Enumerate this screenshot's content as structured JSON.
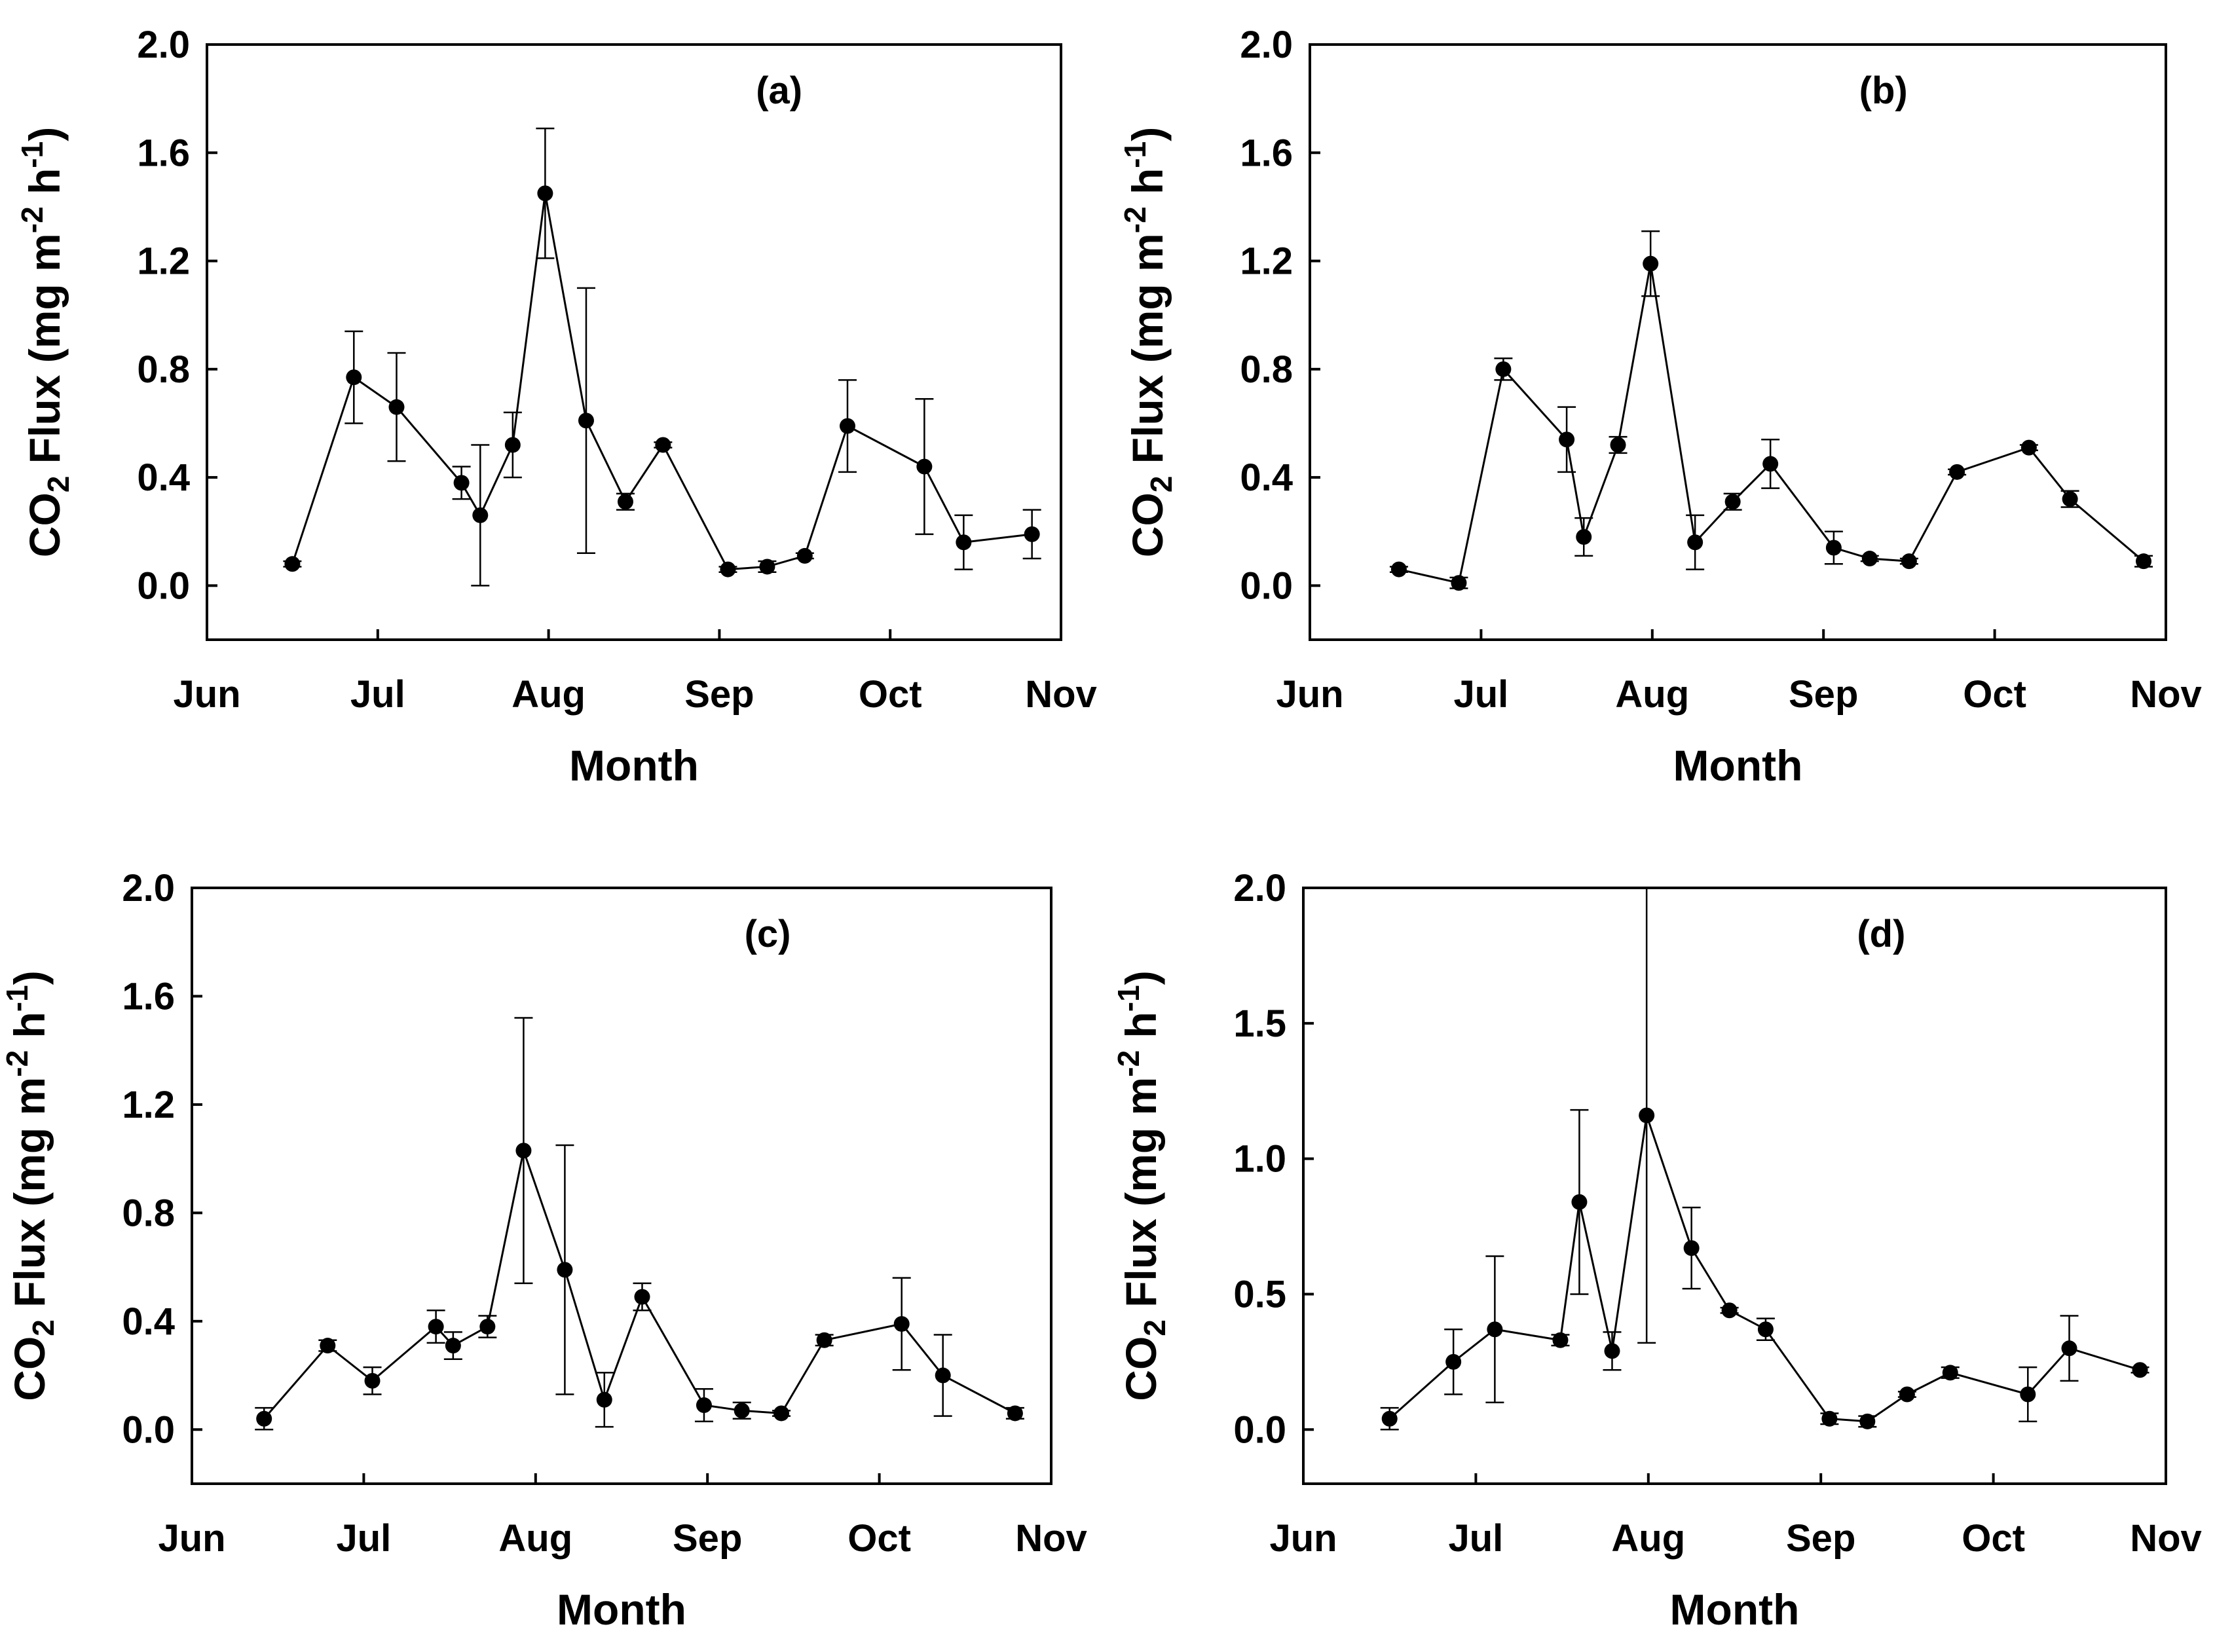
{
  "chart_data": [
    {
      "type": "line",
      "panel_label": "(a)",
      "xlabel": "Month",
      "ylabel": {
        "prefix": "CO",
        "sub": "2",
        "mid": " Flux (mg m",
        "sup1": "-2",
        "mid2": " h",
        "sup2": "-1",
        "suffix": ")"
      },
      "x_ticks": [
        "Jun",
        "Jul",
        "Aug",
        "Sep",
        "Oct",
        "Nov"
      ],
      "x_range": [
        0,
        5
      ],
      "y_ticks": [
        "0.0",
        "0.4",
        "0.8",
        "1.2",
        "1.6",
        "2.0"
      ],
      "y_tick_values": [
        0,
        0.4,
        0.8,
        1.2,
        1.6,
        2.0
      ],
      "ylim": [
        -0.2,
        2.0
      ],
      "points": [
        {
          "x": 0.5,
          "y": 0.08,
          "err": 0.01
        },
        {
          "x": 0.86,
          "y": 0.77,
          "err": 0.17
        },
        {
          "x": 1.11,
          "y": 0.66,
          "err": 0.2
        },
        {
          "x": 1.49,
          "y": 0.38,
          "err": 0.06
        },
        {
          "x": 1.6,
          "y": 0.26,
          "err": 0.26
        },
        {
          "x": 1.79,
          "y": 0.52,
          "err": 0.12
        },
        {
          "x": 1.98,
          "y": 1.45,
          "err": 0.24
        },
        {
          "x": 2.22,
          "y": 0.61,
          "err": 0.49
        },
        {
          "x": 2.45,
          "y": 0.31,
          "err": 0.03
        },
        {
          "x": 2.67,
          "y": 0.52,
          "err": 0.01
        },
        {
          "x": 3.05,
          "y": 0.06,
          "err": 0.01
        },
        {
          "x": 3.28,
          "y": 0.07,
          "err": 0.02
        },
        {
          "x": 3.5,
          "y": 0.11,
          "err": 0.01
        },
        {
          "x": 3.75,
          "y": 0.59,
          "err": 0.17
        },
        {
          "x": 4.2,
          "y": 0.44,
          "err": 0.25
        },
        {
          "x": 4.43,
          "y": 0.16,
          "err": 0.1
        },
        {
          "x": 4.83,
          "y": 0.19,
          "err": 0.09
        }
      ]
    },
    {
      "type": "line",
      "panel_label": "(b)",
      "xlabel": "Month",
      "ylabel": {
        "prefix": "CO",
        "sub": "2",
        "mid": " Flux (mg m",
        "sup1": "-2",
        "mid2": " h",
        "sup2": "-1",
        "suffix": ")"
      },
      "x_ticks": [
        "Jun",
        "Jul",
        "Aug",
        "Sep",
        "Oct",
        "Nov"
      ],
      "x_range": [
        0,
        5
      ],
      "y_ticks": [
        "0.0",
        "0.4",
        "0.8",
        "1.2",
        "1.6",
        "2.0"
      ],
      "y_tick_values": [
        0,
        0.4,
        0.8,
        1.2,
        1.6,
        2.0
      ],
      "ylim": [
        -0.2,
        2.0
      ],
      "points": [
        {
          "x": 0.52,
          "y": 0.06,
          "err": 0.01
        },
        {
          "x": 0.87,
          "y": 0.01,
          "err": 0.02
        },
        {
          "x": 1.13,
          "y": 0.8,
          "err": 0.04
        },
        {
          "x": 1.5,
          "y": 0.54,
          "err": 0.12
        },
        {
          "x": 1.6,
          "y": 0.18,
          "err": 0.07
        },
        {
          "x": 1.8,
          "y": 0.52,
          "err": 0.03
        },
        {
          "x": 1.99,
          "y": 1.19,
          "err": 0.12
        },
        {
          "x": 2.25,
          "y": 0.16,
          "err": 0.1
        },
        {
          "x": 2.47,
          "y": 0.31,
          "err": 0.03
        },
        {
          "x": 2.69,
          "y": 0.45,
          "err": 0.09
        },
        {
          "x": 3.06,
          "y": 0.14,
          "err": 0.06
        },
        {
          "x": 3.27,
          "y": 0.1,
          "err": 0.01
        },
        {
          "x": 3.5,
          "y": 0.09,
          "err": 0.01
        },
        {
          "x": 3.78,
          "y": 0.42,
          "err": 0.01
        },
        {
          "x": 4.2,
          "y": 0.51,
          "err": 0.01
        },
        {
          "x": 4.44,
          "y": 0.32,
          "err": 0.03
        },
        {
          "x": 4.87,
          "y": 0.09,
          "err": 0.02
        }
      ]
    },
    {
      "type": "line",
      "panel_label": "(c)",
      "xlabel": "Month",
      "ylabel": {
        "prefix": "CO",
        "sub": "2",
        "mid": " Flux (mg m",
        "sup1": "-2",
        "mid2": " h",
        "sup2": "-1",
        "suffix": ")"
      },
      "x_ticks": [
        "Jun",
        "Jul",
        "Aug",
        "Sep",
        "Oct",
        "Nov"
      ],
      "x_range": [
        0,
        5
      ],
      "y_ticks": [
        "0.0",
        "0.4",
        "0.8",
        "1.2",
        "1.6",
        "2.0"
      ],
      "y_tick_values": [
        0,
        0.4,
        0.8,
        1.2,
        1.6,
        2.0
      ],
      "ylim": [
        -0.2,
        2.0
      ],
      "points": [
        {
          "x": 0.42,
          "y": 0.04,
          "err": 0.04
        },
        {
          "x": 0.79,
          "y": 0.31,
          "err": 0.02
        },
        {
          "x": 1.05,
          "y": 0.18,
          "err": 0.05
        },
        {
          "x": 1.42,
          "y": 0.38,
          "err": 0.06
        },
        {
          "x": 1.52,
          "y": 0.31,
          "err": 0.05
        },
        {
          "x": 1.72,
          "y": 0.38,
          "err": 0.04
        },
        {
          "x": 1.93,
          "y": 1.03,
          "err": 0.49
        },
        {
          "x": 2.17,
          "y": 0.59,
          "err": 0.46
        },
        {
          "x": 2.4,
          "y": 0.11,
          "err": 0.1
        },
        {
          "x": 2.62,
          "y": 0.49,
          "err": 0.05
        },
        {
          "x": 2.98,
          "y": 0.09,
          "err": 0.06
        },
        {
          "x": 3.2,
          "y": 0.07,
          "err": 0.03
        },
        {
          "x": 3.43,
          "y": 0.06,
          "err": 0.01
        },
        {
          "x": 3.68,
          "y": 0.33,
          "err": 0.02
        },
        {
          "x": 4.13,
          "y": 0.39,
          "err": 0.17
        },
        {
          "x": 4.37,
          "y": 0.2,
          "err": 0.15
        },
        {
          "x": 4.79,
          "y": 0.06,
          "err": 0.02
        }
      ]
    },
    {
      "type": "line",
      "panel_label": "(d)",
      "xlabel": "Month",
      "ylabel": {
        "prefix": "CO",
        "sub": "2",
        "mid": " Flux (mg m",
        "sup1": "-2",
        "mid2": " h",
        "sup2": "-1",
        "suffix": ")"
      },
      "x_ticks": [
        "Jun",
        "Jul",
        "Aug",
        "Sep",
        "Oct",
        "Nov"
      ],
      "x_range": [
        0,
        5
      ],
      "y_ticks": [
        "0.0",
        "0.5",
        "1.0",
        "1.5",
        "2.0"
      ],
      "y_tick_values": [
        0,
        0.5,
        1.0,
        1.5,
        2.0
      ],
      "ylim": [
        -0.2,
        2.0
      ],
      "points": [
        {
          "x": 0.5,
          "y": 0.04,
          "err": 0.04
        },
        {
          "x": 0.87,
          "y": 0.25,
          "err": 0.12
        },
        {
          "x": 1.11,
          "y": 0.37,
          "err": 0.27
        },
        {
          "x": 1.49,
          "y": 0.33,
          "err": 0.02
        },
        {
          "x": 1.6,
          "y": 0.84,
          "err": 0.34
        },
        {
          "x": 1.79,
          "y": 0.29,
          "err": 0.07
        },
        {
          "x": 1.99,
          "y": 1.16,
          "err": 0.84
        },
        {
          "x": 2.25,
          "y": 0.67,
          "err": 0.15
        },
        {
          "x": 2.47,
          "y": 0.44,
          "err": 0.01
        },
        {
          "x": 2.68,
          "y": 0.37,
          "err": 0.04
        },
        {
          "x": 3.05,
          "y": 0.04,
          "err": 0.02
        },
        {
          "x": 3.27,
          "y": 0.03,
          "err": 0.02
        },
        {
          "x": 3.5,
          "y": 0.13,
          "err": 0.01
        },
        {
          "x": 3.75,
          "y": 0.21,
          "err": 0.02
        },
        {
          "x": 4.2,
          "y": 0.13,
          "err": 0.1
        },
        {
          "x": 4.44,
          "y": 0.3,
          "err": 0.12
        },
        {
          "x": 4.85,
          "y": 0.22,
          "err": 0.01
        }
      ]
    }
  ]
}
